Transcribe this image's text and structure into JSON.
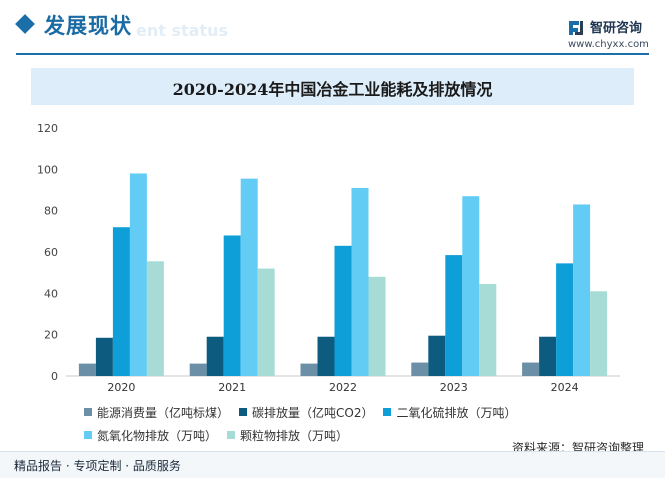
{
  "header": {
    "section_title": "发展现状",
    "section_subtitle": "ent status",
    "brand_name": "智研咨询",
    "brand_url": "www.chyxx.com"
  },
  "chart_data": {
    "type": "bar",
    "title": "2020-2024年中国冶金工业能耗及排放情况",
    "categories": [
      "2020",
      "2021",
      "2022",
      "2023",
      "2024"
    ],
    "ylim": [
      0,
      120
    ],
    "yticks": [
      0,
      20,
      40,
      60,
      80,
      100,
      120
    ],
    "xlabel": "",
    "ylabel": "",
    "grid": false,
    "legend_position": "bottom",
    "series": [
      {
        "name": "能源消费量（亿吨标煤）",
        "color": "#6a8fa6",
        "values": [
          6,
          6,
          6,
          6.5,
          6.5
        ]
      },
      {
        "name": "碳排放量（亿吨CO2）",
        "color": "#0d5c80",
        "values": [
          18.5,
          19,
          19,
          19.5,
          19
        ]
      },
      {
        "name": "二氧化硫排放（万吨）",
        "color": "#0e9fd8",
        "values": [
          72,
          68,
          63,
          58.5,
          54.5
        ]
      },
      {
        "name": "氮氧化物排放（万吨）",
        "color": "#62ccf5",
        "values": [
          98,
          95.5,
          91,
          87,
          83
        ]
      },
      {
        "name": "颗粒物排放（万吨）",
        "color": "#a7dcd6",
        "values": [
          55.5,
          52,
          48,
          44.5,
          41
        ]
      }
    ]
  },
  "footer": {
    "source": "资料来源：智研咨询整理",
    "services": "精品报告 · 专项定制 · 品质服务"
  }
}
